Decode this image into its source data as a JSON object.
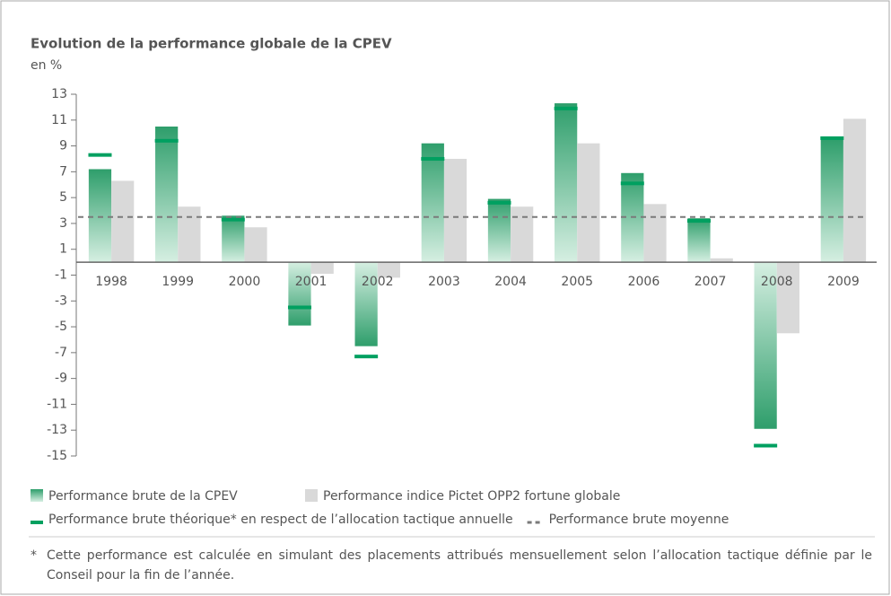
{
  "chart_data": {
    "type": "bar",
    "title": "Evolution de la performance globale de la CPEV",
    "subtitle": "en %",
    "categories": [
      "1998",
      "1999",
      "2000",
      "2001",
      "2002",
      "2003",
      "2004",
      "2005",
      "2006",
      "2007",
      "2008",
      "2009"
    ],
    "series": [
      {
        "name": "Performance brute de la CPEV",
        "color": "#2e9e6b",
        "values": [
          7.2,
          10.5,
          3.6,
          -4.9,
          -6.5,
          9.2,
          4.9,
          12.3,
          6.9,
          3.4,
          -12.9,
          9.6
        ]
      },
      {
        "name": "Performance indice Pictet OPP2 fortune globale",
        "color": "#d9d9d9",
        "values": [
          6.3,
          4.3,
          2.7,
          -0.9,
          -1.2,
          8.0,
          4.3,
          9.2,
          4.5,
          0.3,
          -5.5,
          11.1
        ]
      },
      {
        "name": "Performance brute théorique* en respect de l’allocation tactique annuelle",
        "color": "#00a060",
        "values": [
          8.3,
          9.4,
          3.3,
          -3.5,
          -7.3,
          8.0,
          4.6,
          11.9,
          6.1,
          3.2,
          -14.2,
          9.6
        ]
      }
    ],
    "average": {
      "name": "Performance brute moyenne",
      "value": 3.5,
      "color": "#7a7a7a"
    },
    "ylim": [
      -15,
      13
    ],
    "yticks": [
      13,
      11,
      9,
      7,
      5,
      3,
      1,
      -1,
      -3,
      -5,
      -7,
      -9,
      -11,
      -13,
      -15
    ],
    "footnote_marker": "*",
    "footnote": "Cette performance est calculée en simulant des placements attribués mensuellement selon l’allocation tactique définie par le Conseil pour la fin de l’année."
  }
}
